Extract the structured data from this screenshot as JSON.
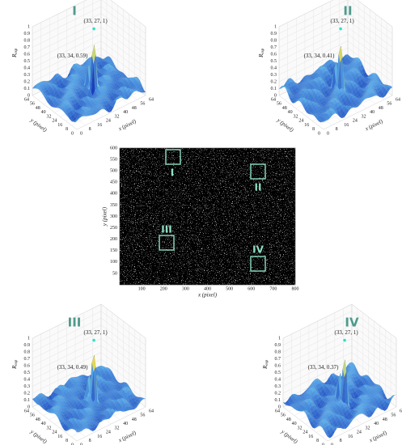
{
  "axes": {
    "z_ticks": [
      0,
      0.1,
      0.2,
      0.3,
      0.4,
      0.5,
      0.6,
      0.7,
      0.8,
      0.9,
      1
    ],
    "x_ticks": [
      0,
      8,
      16,
      24,
      32,
      40,
      48,
      56,
      64
    ],
    "y_ticks": [
      0,
      8,
      16,
      24,
      32,
      40,
      48,
      56,
      64
    ],
    "x_label": "x (pixel)",
    "y_label": "y (pixel)",
    "z_label": "R",
    "z_label_sub": "exp"
  },
  "panels": [
    {
      "label": "I",
      "peak_label": "(33, 27, 1)",
      "second_label": "(33, 34, 0.59)"
    },
    {
      "label": "II",
      "peak_label": "(33, 27, 1)",
      "second_label": "(33, 34, 0.41)"
    },
    {
      "label": "III",
      "peak_label": "(33, 27, 1)",
      "second_label": "(33, 34, 0.49)"
    },
    {
      "label": "IV",
      "peak_label": "(33, 27, 1)",
      "second_label": "(33, 34, 0.37)"
    }
  ],
  "image": {
    "x_label": "x (pixel)",
    "y_label": "y (pixel)",
    "xlim": [
      0,
      800
    ],
    "ylim": [
      0,
      600
    ],
    "x_ticks": [
      100,
      200,
      300,
      400,
      500,
      600,
      700,
      800
    ],
    "y_ticks": [
      50,
      100,
      150,
      200,
      250,
      300,
      350,
      400,
      450,
      500,
      550,
      600
    ],
    "boxes": [
      "I",
      "II",
      "III",
      "IV"
    ]
  }
}
